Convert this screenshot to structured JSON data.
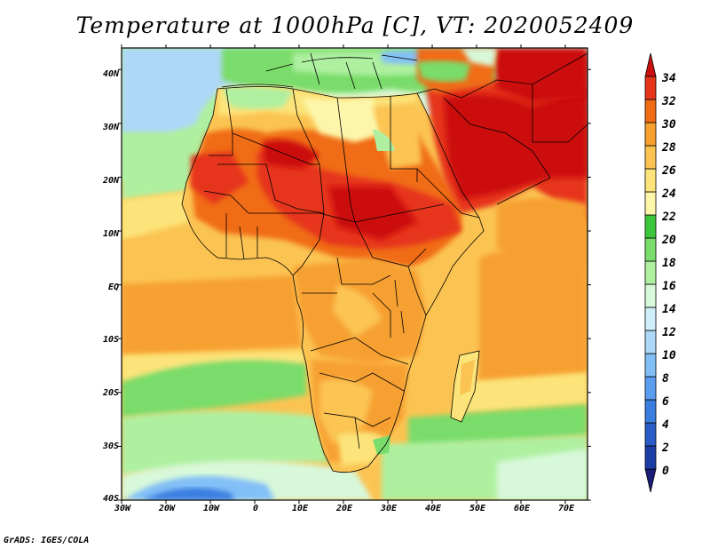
{
  "title": "Temperature at 1000hPa [C], VT: 2020052409",
  "credit": "GrADS: IGES/COLA",
  "map": {
    "lat_ticks": [
      "40N",
      "30N",
      "20N",
      "10N",
      "EQ",
      "10S",
      "20S",
      "30S",
      "40S"
    ],
    "lon_ticks": [
      "30W",
      "20W",
      "10W",
      "0",
      "10E",
      "20E",
      "30E",
      "40E",
      "50E",
      "60E",
      "70E"
    ],
    "lat_range": [
      -40,
      44
    ],
    "lon_range": [
      -30,
      75
    ]
  },
  "colorbar": {
    "levels": [
      "0",
      "2",
      "4",
      "6",
      "8",
      "10",
      "12",
      "14",
      "16",
      "18",
      "20",
      "22",
      "24",
      "26",
      "28",
      "30",
      "32",
      "34"
    ],
    "colors": [
      "#1a1c7a",
      "#1c3ca6",
      "#2a5cc8",
      "#3a7ee0",
      "#5a9cee",
      "#82bff6",
      "#aed8f8",
      "#d0eefa",
      "#d8f8da",
      "#aef0a0",
      "#7adc6a",
      "#3cc63c",
      "#fdf6aa",
      "#fce47a",
      "#fbc452",
      "#f7a030",
      "#f06c14",
      "#e6341a",
      "#cc1010"
    ]
  }
}
